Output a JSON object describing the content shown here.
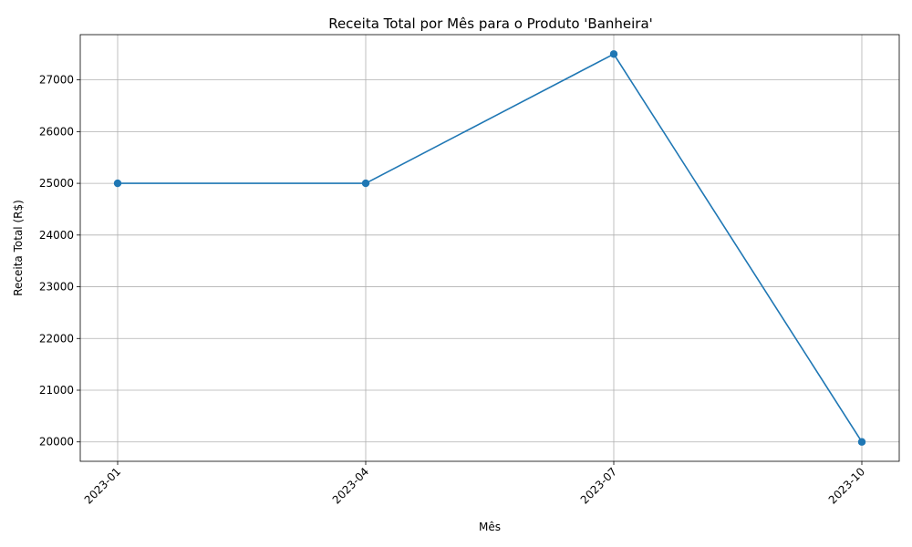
{
  "chart_data": {
    "type": "line",
    "title": "Receita Total por Mês para o Produto 'Banheira'",
    "xlabel": "Mês",
    "ylabel": "Receita Total (R$)",
    "categories": [
      "2023-01",
      "2023-04",
      "2023-07",
      "2023-10"
    ],
    "series": [
      {
        "values": [
          25000,
          25000,
          27500,
          20000
        ]
      }
    ],
    "ylim": [
      19625,
      27875
    ],
    "yticks": [
      20000,
      21000,
      22000,
      23000,
      24000,
      25000,
      26000,
      27000
    ],
    "grid": true,
    "legend": "none",
    "line_color": "#1f77b4",
    "marker": "circle"
  }
}
